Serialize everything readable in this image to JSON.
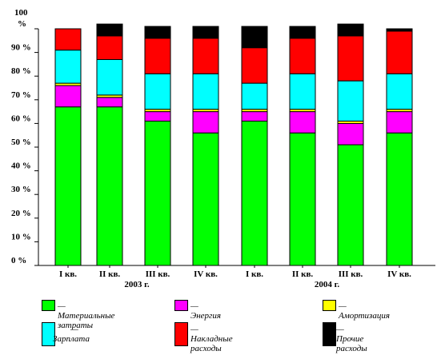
{
  "chart_data": {
    "type": "bar",
    "stacked": true,
    "categories": [
      "I кв.",
      "II кв.",
      "III кв.",
      "IV кв.",
      "I кв.",
      "II кв.",
      "III кв.",
      "IV кв."
    ],
    "groups": [
      {
        "label": "2003 г.",
        "categories": [
          0,
          1,
          2,
          3
        ]
      },
      {
        "label": "2004 г.",
        "categories": [
          4,
          5,
          6,
          7
        ]
      }
    ],
    "y_ticks": [
      "0 %",
      "10 %",
      "20 %",
      "30 %",
      "40 %",
      "50 %",
      "60 %",
      "70 %",
      "80 %",
      "90 %"
    ],
    "y_top_label": [
      "100",
      "%"
    ],
    "ylim": [
      0,
      100
    ],
    "series": [
      {
        "name": "Материальные затраты",
        "color": "#00ff00",
        "values": [
          67,
          67,
          61,
          56,
          61,
          56,
          51,
          56
        ]
      },
      {
        "name": "Энергия",
        "color": "#ff00ff",
        "values": [
          9,
          4,
          4,
          9,
          4,
          9,
          9,
          9
        ]
      },
      {
        "name": "Амортизация",
        "color": "#ffff00",
        "values": [
          1,
          1,
          1,
          1,
          1,
          1,
          1,
          1
        ]
      },
      {
        "name": "Зарплата",
        "color": "#00ffff",
        "values": [
          14,
          15,
          15,
          15,
          11,
          15,
          17,
          15
        ]
      },
      {
        "name": "Накладные расходы",
        "color": "#ff0000",
        "values": [
          9,
          10,
          15,
          15,
          15,
          15,
          19,
          18
        ]
      },
      {
        "name": "Прочие расходы",
        "color": "#000000",
        "values": [
          0,
          5,
          5,
          5,
          9,
          5,
          5,
          1
        ]
      }
    ]
  },
  "legend": [
    {
      "color": "#00ff00",
      "lines": [
        "— Материальные затраты"
      ]
    },
    {
      "color": "#ff00ff",
      "lines": [
        "— Энергия"
      ]
    },
    {
      "color": "#ffff00",
      "lines": [
        "— Амортизация"
      ]
    },
    {
      "color": "#00ffff",
      "lines": [
        "—",
        "Зарплата"
      ]
    },
    {
      "color": "#ff0000",
      "lines": [
        "— Накладные",
        "расходы"
      ]
    },
    {
      "color": "#000000",
      "lines": [
        "— Прочие",
        "расходы"
      ]
    }
  ]
}
